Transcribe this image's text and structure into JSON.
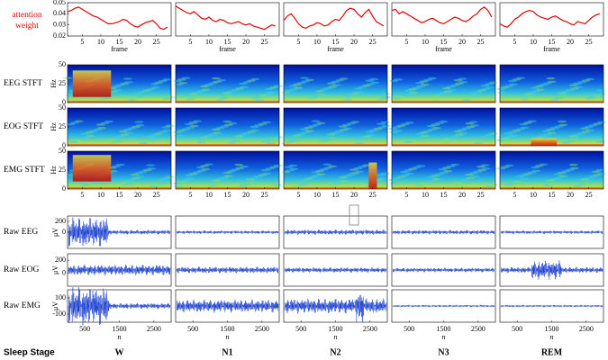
{
  "chart_data": [
    {
      "type": "line",
      "title": [
        "attention",
        "weight"
      ],
      "xlabel": "frame",
      "x": [
        1,
        2,
        3,
        4,
        5,
        6,
        7,
        8,
        9,
        10,
        11,
        12,
        13,
        14,
        15,
        16,
        17,
        18,
        19,
        20,
        21,
        22,
        23,
        24,
        25,
        26,
        27,
        28
      ],
      "xlim": [
        1,
        29
      ],
      "xticks": [
        5,
        10,
        15,
        20,
        25
      ],
      "ylim": [
        0.02,
        0.05
      ],
      "yticks": [
        0.02,
        0.03,
        0.04,
        0.05
      ],
      "series": [
        {
          "name": "W",
          "color": "#e00000",
          "values": [
            0.042,
            0.043,
            0.045,
            0.046,
            0.044,
            0.042,
            0.04,
            0.038,
            0.037,
            0.035,
            0.033,
            0.031,
            0.031,
            0.032,
            0.033,
            0.035,
            0.034,
            0.031,
            0.029,
            0.028,
            0.03,
            0.032,
            0.033,
            0.034,
            0.031,
            0.027,
            0.026,
            0.028
          ]
        },
        {
          "name": "N1",
          "color": "#e00000",
          "values": [
            0.047,
            0.045,
            0.043,
            0.041,
            0.04,
            0.042,
            0.039,
            0.036,
            0.035,
            0.037,
            0.034,
            0.033,
            0.035,
            0.034,
            0.032,
            0.031,
            0.032,
            0.033,
            0.031,
            0.03,
            0.031,
            0.029,
            0.028,
            0.027,
            0.026,
            0.028,
            0.03,
            0.029
          ]
        },
        {
          "name": "N2",
          "color": "#e00000",
          "values": [
            0.034,
            0.038,
            0.04,
            0.036,
            0.031,
            0.028,
            0.027,
            0.029,
            0.03,
            0.032,
            0.031,
            0.029,
            0.03,
            0.033,
            0.035,
            0.034,
            0.038,
            0.043,
            0.045,
            0.044,
            0.04,
            0.037,
            0.041,
            0.044,
            0.038,
            0.033,
            0.031,
            0.029
          ]
        },
        {
          "name": "N3",
          "color": "#e00000",
          "values": [
            0.043,
            0.044,
            0.04,
            0.042,
            0.04,
            0.038,
            0.036,
            0.034,
            0.032,
            0.033,
            0.035,
            0.036,
            0.034,
            0.032,
            0.031,
            0.033,
            0.035,
            0.037,
            0.036,
            0.034,
            0.033,
            0.035,
            0.038,
            0.04,
            0.044,
            0.046,
            0.043,
            0.037
          ]
        },
        {
          "name": "REM",
          "color": "#e00000",
          "values": [
            0.031,
            0.029,
            0.028,
            0.031,
            0.035,
            0.037,
            0.04,
            0.042,
            0.043,
            0.042,
            0.039,
            0.037,
            0.036,
            0.035,
            0.037,
            0.038,
            0.036,
            0.034,
            0.033,
            0.031,
            0.03,
            0.033,
            0.032,
            0.031,
            0.034,
            0.037,
            0.039,
            0.04
          ]
        }
      ]
    },
    {
      "type": "spectrogram",
      "rows": [
        "EEG STFT",
        "EOG STFT",
        "EMG STFT"
      ],
      "ylabel": "Hz",
      "xlim": [
        1,
        29
      ],
      "xticks": [
        5,
        10,
        15,
        20,
        25
      ],
      "ylim": [
        0,
        50
      ],
      "yticks": [
        0,
        25,
        50
      ]
    },
    {
      "type": "signal",
      "rows": [
        {
          "label": "Raw EEG",
          "ylim": [
            -300,
            300
          ],
          "yticks": [
            0,
            200
          ]
        },
        {
          "label": "Raw EOG",
          "ylim": [
            -200,
            300
          ],
          "yticks": [
            0,
            200
          ]
        },
        {
          "label": "Raw EMG",
          "ylim": [
            -200,
            200
          ],
          "yticks": [
            -100,
            100
          ]
        }
      ],
      "ylabel": "μV",
      "xlabel": "n",
      "xlim": [
        0,
        3000
      ],
      "xticks": [
        500,
        1500,
        2500
      ]
    }
  ],
  "sleep_stage_label": "Sleep Stage"
}
